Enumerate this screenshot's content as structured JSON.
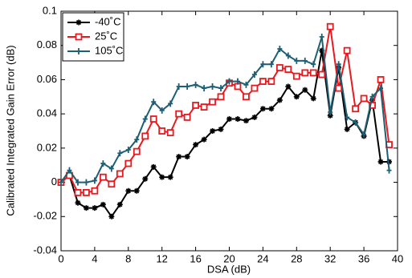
{
  "chart_data": {
    "type": "line",
    "x_label": "DSA (dB)",
    "y_label": "Calibrated Integrated Gain Error (dB)",
    "x": [
      0,
      1,
      2,
      3,
      4,
      5,
      6,
      7,
      8,
      9,
      10,
      11,
      12,
      13,
      14,
      15,
      16,
      17,
      18,
      19,
      20,
      21,
      22,
      23,
      24,
      25,
      26,
      27,
      28,
      29,
      30,
      31,
      32,
      33,
      34,
      35,
      36,
      37,
      38,
      39
    ],
    "series": [
      {
        "name": "-40˚C",
        "color": "#000000",
        "marker": "star",
        "values": [
          0,
          0.004,
          -0.012,
          -0.015,
          -0.015,
          -0.013,
          -0.02,
          -0.013,
          -0.005,
          -0.005,
          0.002,
          0.009,
          0.003,
          0.003,
          0.015,
          0.015,
          0.022,
          0.025,
          0.03,
          0.031,
          0.037,
          0.037,
          0.036,
          0.038,
          0.043,
          0.043,
          0.048,
          0.056,
          0.05,
          0.054,
          0.049,
          0.077,
          0.039,
          0.067,
          0.031,
          0.035,
          0.027,
          0.048,
          0.012,
          0.012
        ]
      },
      {
        "name": "25˚C",
        "color": "#e8191f",
        "marker": "square",
        "values": [
          0,
          0.004,
          -0.006,
          -0.006,
          -0.005,
          0.003,
          -0.001,
          0.005,
          0.011,
          0.018,
          0.027,
          0.037,
          0.03,
          0.029,
          0.04,
          0.038,
          0.045,
          0.044,
          0.047,
          0.05,
          0.058,
          0.056,
          0.05,
          0.055,
          0.059,
          0.059,
          0.067,
          0.066,
          0.062,
          0.064,
          0.064,
          0.063,
          0.091,
          0.055,
          0.077,
          0.043,
          0.049,
          0.045,
          0.06,
          0.022
        ]
      },
      {
        "name": "105˚C",
        "color": "#1e5f74",
        "marker": "plus",
        "values": [
          0,
          0.007,
          0,
          0,
          0.001,
          0.011,
          0.008,
          0.017,
          0.019,
          0.025,
          0.037,
          0.047,
          0.042,
          0.046,
          0.056,
          0.056,
          0.057,
          0.055,
          0.056,
          0.055,
          0.059,
          0.059,
          0.057,
          0.063,
          0.069,
          0.069,
          0.078,
          0.074,
          0.071,
          0.071,
          0.069,
          0.085,
          0.041,
          0.069,
          0.038,
          0.035,
          0.028,
          0.05,
          0.055,
          0.007
        ]
      }
    ],
    "xlim": [
      0,
      40
    ],
    "xticks": [
      0,
      4,
      8,
      12,
      16,
      20,
      24,
      28,
      32,
      36,
      40
    ],
    "ylim": [
      -0.04,
      0.1
    ],
    "yticks": [
      -0.04,
      -0.02,
      0,
      0.02,
      0.04,
      0.06,
      0.08,
      0.1
    ],
    "grid": false,
    "legend": "upper left"
  }
}
